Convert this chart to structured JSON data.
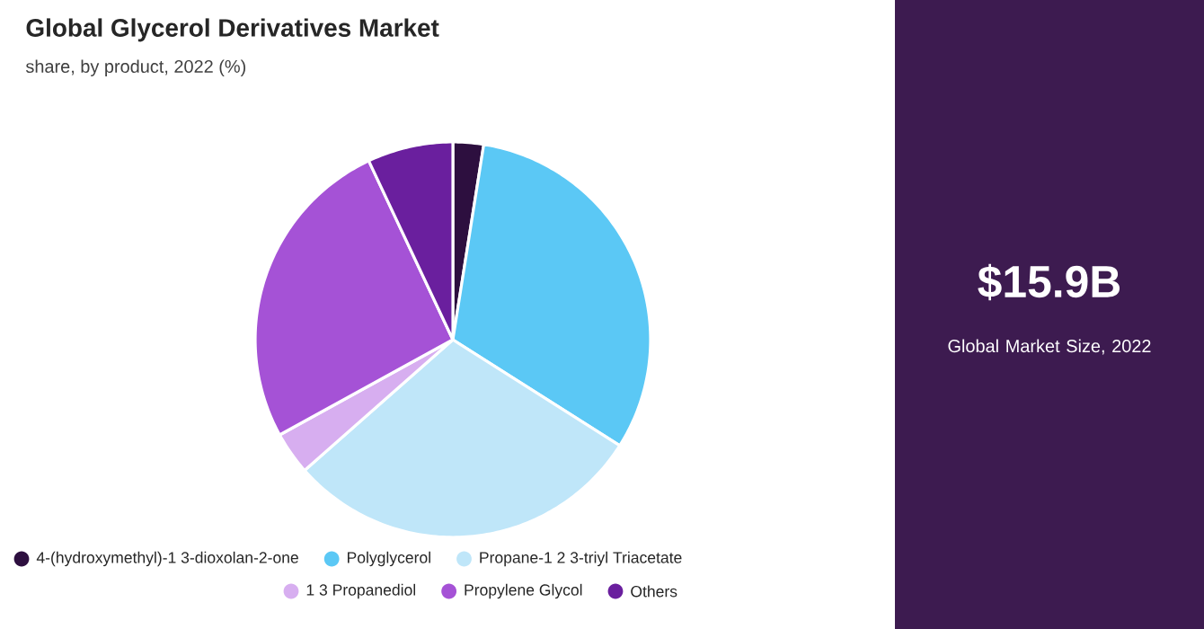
{
  "chart_data": {
    "type": "pie",
    "title": "Global Glycerol Derivatives Market",
    "subtitle": "share, by product, 2022 (%)",
    "categories": [
      "4-(hydroxymethyl)-1 3-dioxolan-2-one",
      "Polyglycerol",
      "Propane-1 2 3-triyl Triacetate",
      "1 3 Propanediol",
      "Propylene Glycol",
      "Others"
    ],
    "values": [
      2.5,
      31.5,
      29.5,
      3.5,
      26,
      7
    ],
    "colors": [
      "#2d0f3f",
      "#5bc8f5",
      "#bfe6f9",
      "#d7aef0",
      "#a552d6",
      "#6a1f9e"
    ],
    "legend": "bottom",
    "annotations": [
      "$15.9B",
      "Global Market Size, 2022"
    ]
  }
}
